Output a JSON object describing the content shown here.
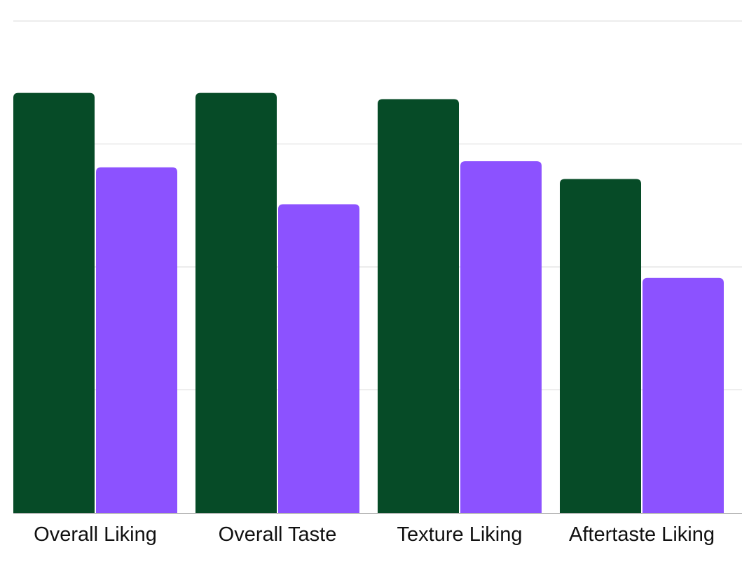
{
  "chart_data": {
    "type": "bar",
    "title": "",
    "xlabel": "",
    "ylabel": "",
    "categories": [
      "Overall Liking",
      "Overall Taste",
      "Texture Liking",
      "Aftertaste Liking"
    ],
    "series": [
      {
        "values": [
          6.83,
          6.83,
          6.73,
          5.43
        ]
      },
      {
        "values": [
          5.62,
          5.02,
          5.72,
          3.82
        ]
      }
    ],
    "ylim": [
      0,
      8
    ],
    "yticks": [
      0,
      2,
      4,
      6,
      8
    ],
    "grid": true,
    "colors": [
      "#064B27",
      "#8C52FF"
    ]
  }
}
